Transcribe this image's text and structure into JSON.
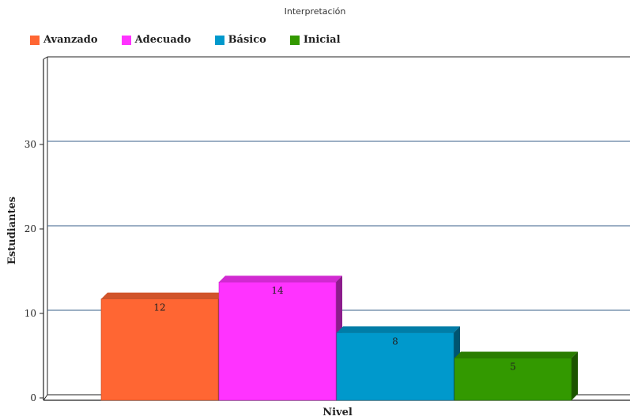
{
  "chart_data": {
    "type": "bar",
    "title": "Interpretación",
    "xlabel": "Nivel",
    "ylabel": "Estudiantes",
    "ylim": [
      0,
      40
    ],
    "yticks": [
      0,
      10,
      20,
      30
    ],
    "grid": true,
    "legend_position": "top-left",
    "series": [
      {
        "name": "Avanzado",
        "value": 12,
        "color": "#ff6633"
      },
      {
        "name": "Adecuado",
        "value": 14,
        "color": "#ff33ff"
      },
      {
        "name": "Básico",
        "value": 8,
        "color": "#0099cc"
      },
      {
        "name": "Inicial",
        "value": 5,
        "color": "#339900"
      }
    ]
  }
}
